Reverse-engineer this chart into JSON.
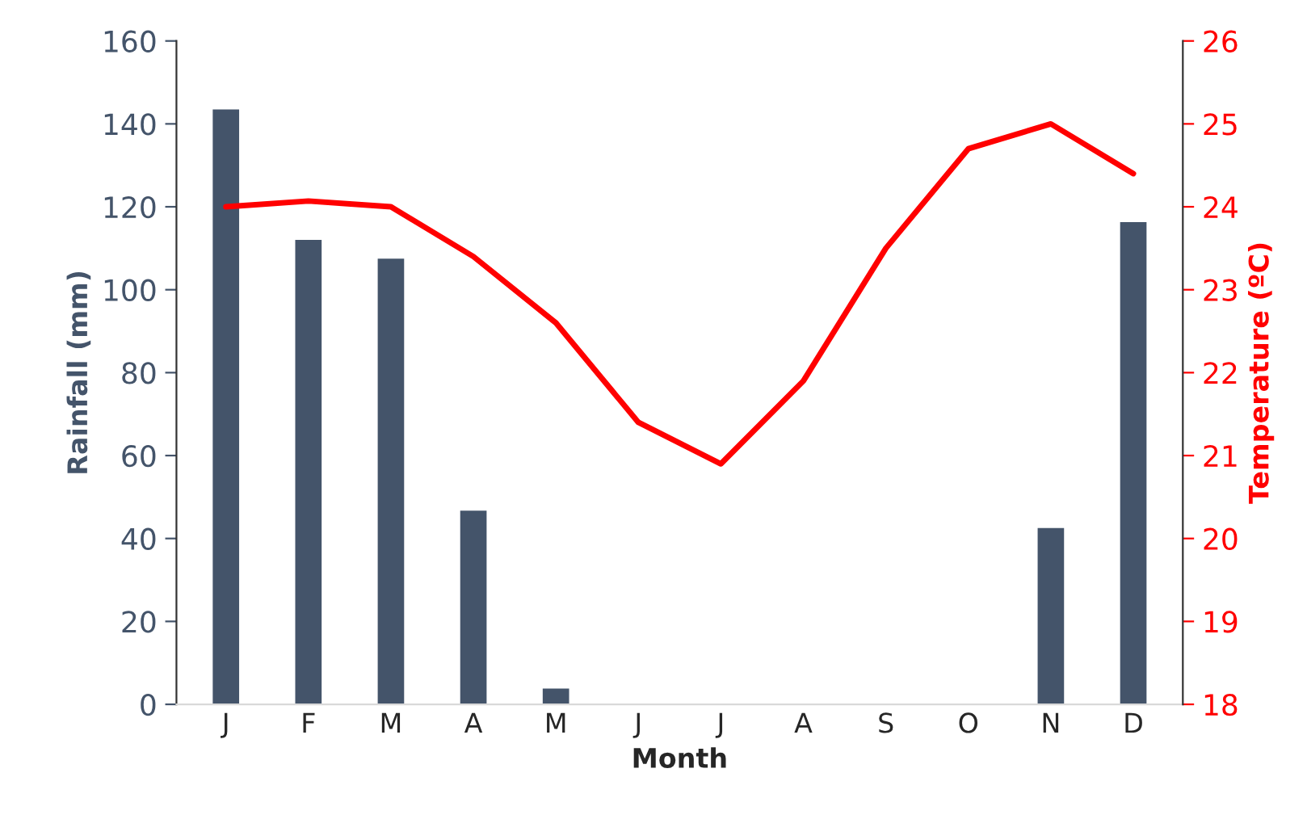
{
  "chart_data": {
    "type": "bar",
    "xlabel": "Month",
    "ylabel": "Rainfall (mm)",
    "y2label": "Temperature (ºC)",
    "categories": [
      "J",
      "F",
      "M",
      "A",
      "M",
      "J",
      "J",
      "A",
      "S",
      "O",
      "N",
      "D"
    ],
    "series": [
      {
        "color": "#44546a",
        "values": [
          143.5,
          112,
          107.5,
          46.7,
          3.8,
          0,
          0,
          0,
          0,
          0,
          42.5,
          116.3
        ]
      },
      {
        "type": "line",
        "axis": "y2",
        "color": "#ff0000",
        "values": [
          24.0,
          24.07,
          24.0,
          23.4,
          22.6,
          21.4,
          20.9,
          21.9,
          23.5,
          24.7,
          25.0,
          24.4
        ]
      }
    ],
    "ylim": [
      0,
      160
    ],
    "yticks": [
      0,
      20,
      40,
      60,
      80,
      100,
      120,
      140,
      160
    ],
    "y2lim": [
      18,
      26
    ],
    "y2ticks": [
      18,
      19,
      20,
      21,
      22,
      23,
      24,
      25,
      26
    ],
    "grid": false,
    "legend": false
  }
}
